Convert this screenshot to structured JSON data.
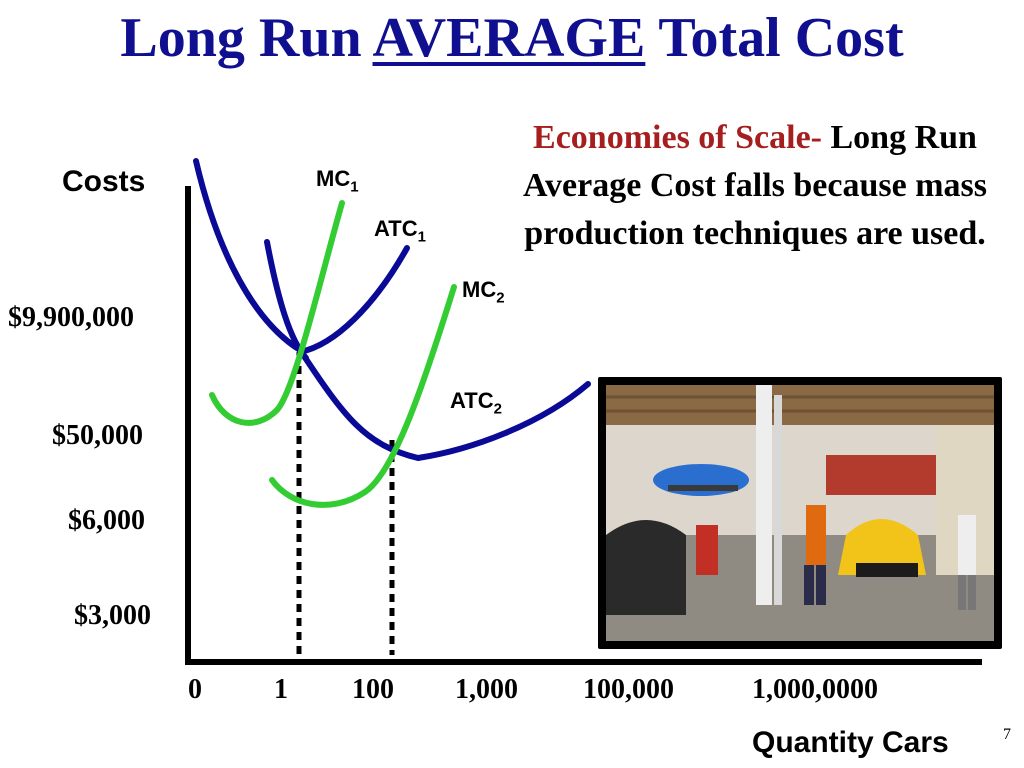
{
  "slide": {
    "title_before": "Long Run ",
    "title_emph": "AVERAGE",
    "title_after": " Total Cost",
    "callout_red": "Economies of Scale-",
    "callout_rest": " Long Run Average Cost falls because mass production techniques are used.",
    "page_number": "7"
  },
  "chart_data": {
    "type": "line",
    "title": "",
    "ylabel": "Costs",
    "xlabel": "Quantity Cars",
    "y_tick_labels": [
      "$9,900,000",
      "$50,000",
      "$6,000",
      "$3,000"
    ],
    "x_tick_labels": [
      "0",
      "1",
      "100",
      "1,000",
      "100,000",
      "1,000,0000"
    ],
    "series": [
      {
        "name": "MC",
        "subscript": "1",
        "color": "#33cc33"
      },
      {
        "name": "ATC",
        "subscript": "1",
        "color": "#0a0a96"
      },
      {
        "name": "MC",
        "subscript": "2",
        "color": "#33cc33"
      },
      {
        "name": "ATC",
        "subscript": "2",
        "color": "#0a0a96"
      }
    ],
    "notes": "Schematic cost curves without numeric data points; two dotted drop lines mark the minimum-ATC quantities for each plant size."
  },
  "colors": {
    "title": "#0f0f8f",
    "callout_emphasis": "#a51f1f",
    "atc": "#0a0a96",
    "mc": "#33cc33"
  },
  "photo": {
    "alt_icon": "car-workshop-photo"
  }
}
